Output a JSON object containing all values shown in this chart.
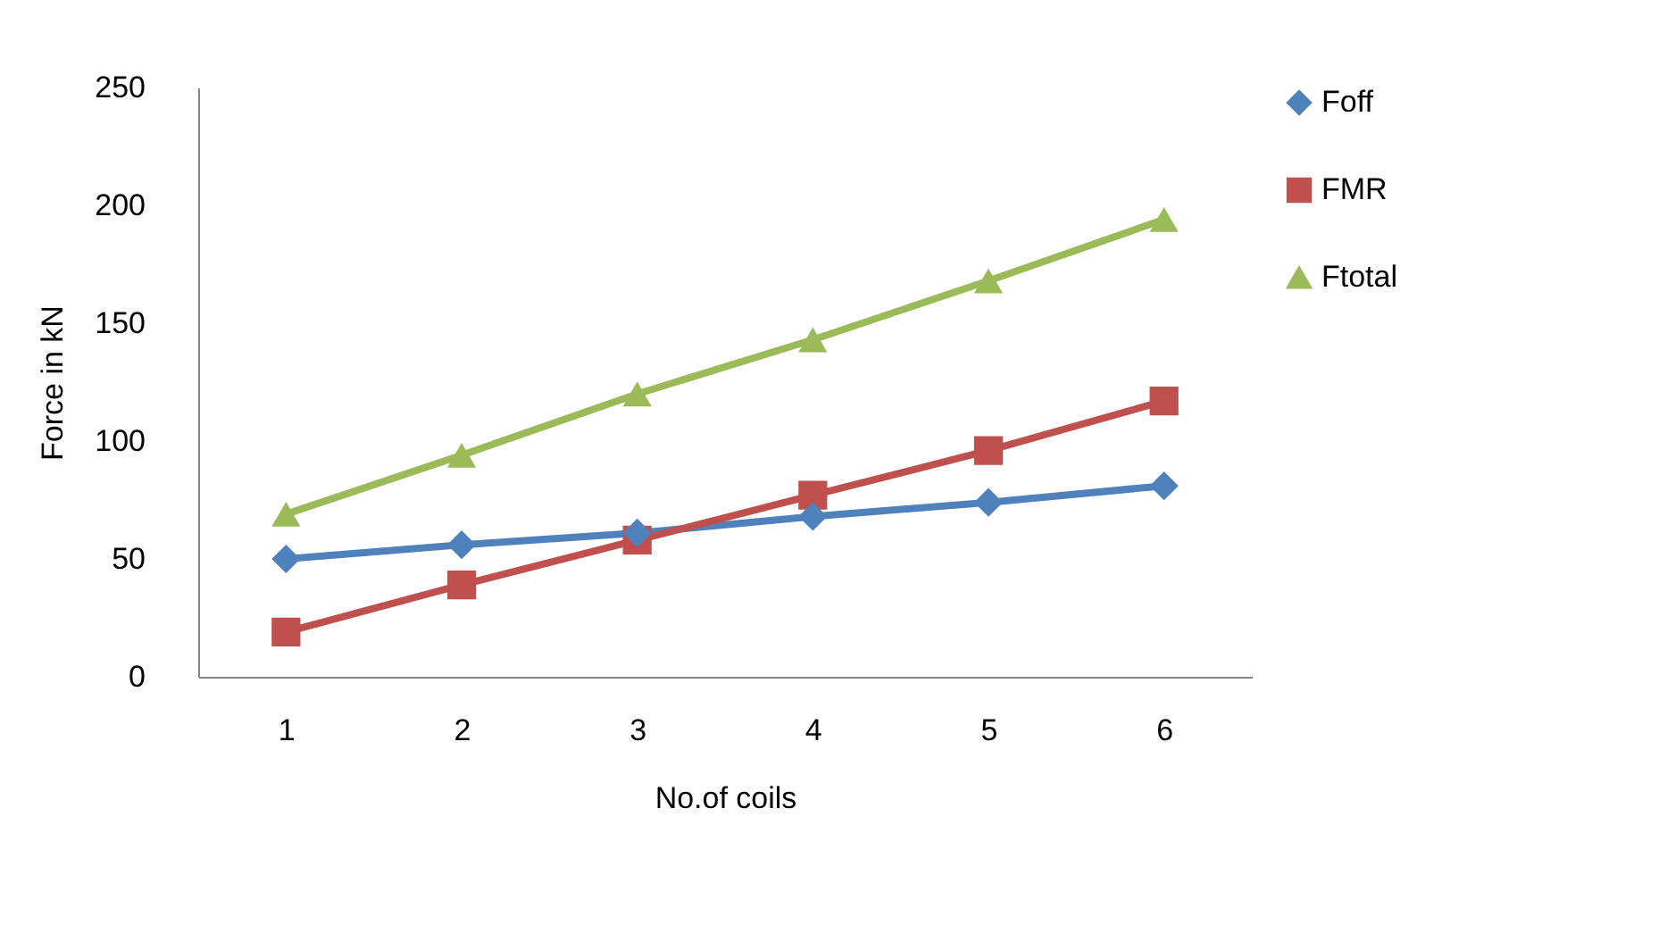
{
  "chart_data": {
    "type": "line",
    "xlabel": "No.of coils",
    "ylabel": "Force in kN",
    "categories": [
      "1",
      "2",
      "3",
      "4",
      "5",
      "6"
    ],
    "series": [
      {
        "name": "Foff",
        "color": "#4f81bd",
        "marker": "diamond",
        "values": [
          50,
          56,
          61,
          68,
          74,
          81
        ]
      },
      {
        "name": "FMR",
        "color": "#c0504d",
        "marker": "square",
        "values": [
          19,
          39,
          58,
          77,
          96,
          117
        ]
      },
      {
        "name": "Ftotal",
        "color": "#9bbb59",
        "marker": "triangle",
        "values": [
          69,
          94,
          120,
          143,
          168,
          194
        ]
      }
    ],
    "ylim": [
      0,
      250
    ],
    "yticks": [
      0,
      50,
      100,
      150,
      200,
      250
    ],
    "grid": false,
    "legend": "right"
  }
}
